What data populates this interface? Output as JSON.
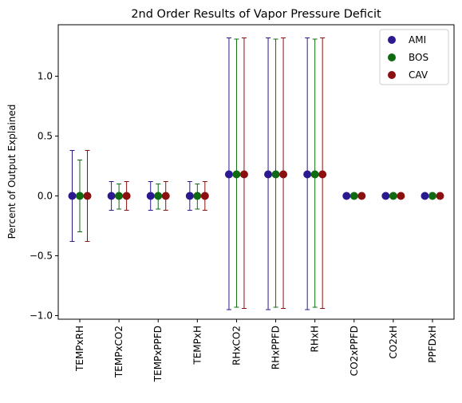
{
  "chart_data": {
    "type": "scatter",
    "title": "2nd Order Results of Vapor Pressure Deficit",
    "xlabel": "",
    "ylabel": "Percent of Output Explained",
    "categories": [
      "TEMPxRH",
      "TEMPxCO2",
      "TEMPxPPFD",
      "TEMPxH",
      "RHxCO2",
      "RHxPPFD",
      "RHxH",
      "CO2xPPFD",
      "CO2xH",
      "PPFDxH"
    ],
    "ylim": [
      -1.03,
      1.43
    ],
    "yticks": [
      -1.0,
      -0.5,
      0.0,
      0.5,
      1.0
    ],
    "ytick_labels": [
      "−1.0",
      "−0.5",
      "0.0",
      "0.5",
      "1.0"
    ],
    "legend_position": "top-right",
    "grid": false,
    "series": [
      {
        "name": "AMI",
        "color": "#2b1a8f",
        "values": [
          0.0,
          0.0,
          0.0,
          0.0,
          0.18,
          0.18,
          0.18,
          0.0,
          0.0,
          0.0
        ],
        "err_low": [
          -0.38,
          -0.12,
          -0.12,
          -0.12,
          -0.95,
          -0.95,
          -0.95,
          0.0,
          0.0,
          0.0
        ],
        "err_high": [
          0.38,
          0.12,
          0.12,
          0.12,
          1.32,
          1.32,
          1.32,
          0.0,
          0.0,
          0.0
        ]
      },
      {
        "name": "BOS",
        "color": "#0f6b12",
        "values": [
          0.0,
          0.0,
          0.0,
          0.0,
          0.18,
          0.18,
          0.18,
          0.0,
          0.0,
          0.0
        ],
        "err_low": [
          -0.3,
          -0.11,
          -0.11,
          -0.11,
          -0.93,
          -0.93,
          -0.93,
          0.0,
          0.0,
          0.0
        ],
        "err_high": [
          0.3,
          0.1,
          0.1,
          0.1,
          1.31,
          1.31,
          1.31,
          0.0,
          0.0,
          0.0
        ]
      },
      {
        "name": "CAV",
        "color": "#8b1010",
        "values": [
          0.0,
          0.0,
          0.0,
          0.0,
          0.18,
          0.18,
          0.18,
          0.0,
          0.0,
          0.0
        ],
        "err_low": [
          -0.38,
          -0.12,
          -0.12,
          -0.12,
          -0.94,
          -0.94,
          -0.94,
          0.0,
          0.0,
          0.0
        ],
        "err_high": [
          0.38,
          0.12,
          0.12,
          0.12,
          1.32,
          1.32,
          1.32,
          0.0,
          0.0,
          0.0
        ]
      }
    ]
  }
}
